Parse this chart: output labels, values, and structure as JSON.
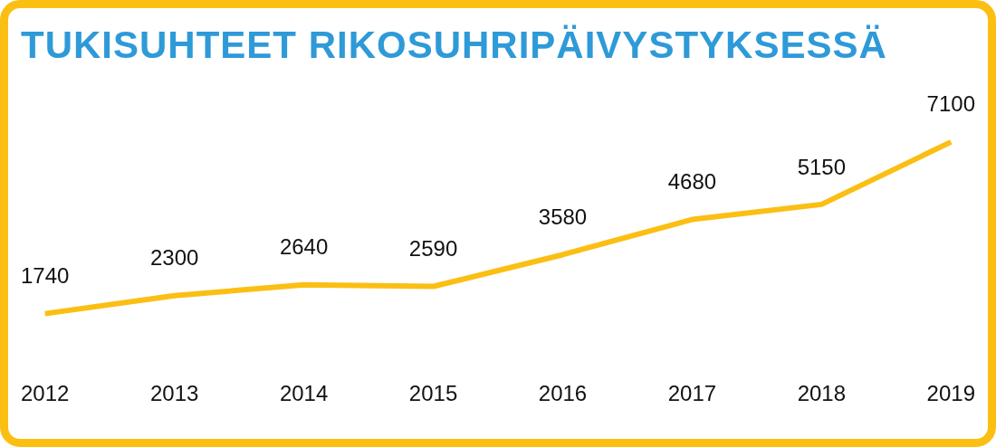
{
  "chart_data": {
    "type": "line",
    "title": "TUKISUHTEET RIKOSUHRIPÄIVYSTYKSESSÄ",
    "categories": [
      "2012",
      "2013",
      "2014",
      "2015",
      "2016",
      "2017",
      "2018",
      "2019"
    ],
    "series": [
      {
        "color": "#fbbf14",
        "values": [
          1740,
          2300,
          2640,
          2590,
          3580,
          4680,
          5150,
          7100
        ]
      }
    ],
    "data_labels": true
  }
}
